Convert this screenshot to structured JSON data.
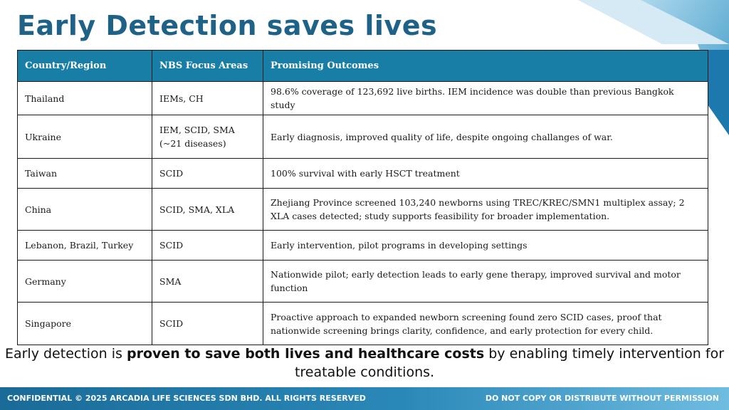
{
  "title": "Early Detection saves lives",
  "table": {
    "headers": [
      "Country/Region",
      "NBS Focus Areas",
      "Promising Outcomes"
    ],
    "rows": [
      {
        "country": "Thailand",
        "focus": "IEMs, CH",
        "outcome": "98.6% coverage of 123,692 live births. IEM incidence was double than previous Bangkok study"
      },
      {
        "country": "Ukraine",
        "focus": "IEM, SCID, SMA (~21 diseases)",
        "outcome": "Early diagnosis, improved quality of life, despite ongoing challanges of war."
      },
      {
        "country": "Taiwan",
        "focus": "SCID",
        "outcome": "100% survival with early HSCT treatment"
      },
      {
        "country": "China",
        "focus": "SCID, SMA, XLA",
        "outcome": "Zhejiang Province screened 103,240 newborns using TREC/KREC/SMN1 multiplex assay; 2 XLA cases detected; study supports feasibility for broader implementation."
      },
      {
        "country": "Lebanon, Brazil, Turkey",
        "focus": "SCID",
        "outcome": "Early intervention, pilot programs in developing settings"
      },
      {
        "country": "Germany",
        "focus": "SMA",
        "outcome": "Nationwide pilot; early detection leads to early gene therapy, improved survival and motor function"
      },
      {
        "country": "Singapore",
        "focus": "SCID",
        "outcome": "Proactive approach to expanded newborn screening found zero SCID cases, proof that nationwide screening brings clarity, confidence, and early protection for every child."
      }
    ]
  },
  "summary": {
    "pre": "Early detection is ",
    "bold": "proven to save both lives and healthcare costs",
    "post": " by enabling timely intervention for treatable conditions."
  },
  "footer": {
    "left": "CONFIDENTIAL ©  2025 ARCADIA LIFE SCIENCES SDN BHD. ALL RIGHTS RESERVED",
    "right": "DO NOT COPY OR DISTRIBUTE WITHOUT PERMISSION"
  },
  "colors": {
    "title": "#1f6287",
    "header_bg": "#197ea6",
    "footer_start": "#1a6b97",
    "footer_end": "#6fbce0"
  }
}
